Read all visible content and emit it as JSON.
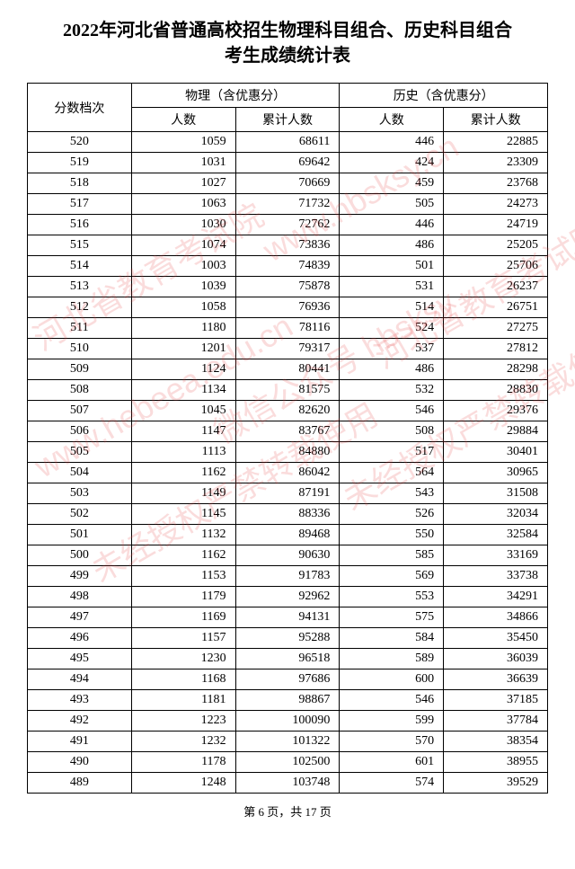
{
  "title_line1": "2022年河北省普通高校招生物理科目组合、历史科目组合",
  "title_line2": "考生成绩统计表",
  "headers": {
    "score": "分数档次",
    "physics": "物理（含优惠分）",
    "history": "历史（含优惠分）",
    "count": "人数",
    "cumulative": "累计人数"
  },
  "footer": "第 6 页，共 17 页",
  "watermarks": {
    "w1": "河北省教育考试院",
    "w2": "www.hebeea.edu.cn",
    "w3": "www.hbsksy.cn",
    "w4": "微信公众号 hbsksy",
    "w5": "未经授权严禁转载使用"
  },
  "table": {
    "columns": [
      "分数档次",
      "人数",
      "累计人数",
      "人数",
      "累计人数"
    ],
    "rows": [
      [
        520,
        1059,
        68611,
        446,
        22885
      ],
      [
        519,
        1031,
        69642,
        424,
        23309
      ],
      [
        518,
        1027,
        70669,
        459,
        23768
      ],
      [
        517,
        1063,
        71732,
        505,
        24273
      ],
      [
        516,
        1030,
        72762,
        446,
        24719
      ],
      [
        515,
        1074,
        73836,
        486,
        25205
      ],
      [
        514,
        1003,
        74839,
        501,
        25706
      ],
      [
        513,
        1039,
        75878,
        531,
        26237
      ],
      [
        512,
        1058,
        76936,
        514,
        26751
      ],
      [
        511,
        1180,
        78116,
        524,
        27275
      ],
      [
        510,
        1201,
        79317,
        537,
        27812
      ],
      [
        509,
        1124,
        80441,
        486,
        28298
      ],
      [
        508,
        1134,
        81575,
        532,
        28830
      ],
      [
        507,
        1045,
        82620,
        546,
        29376
      ],
      [
        506,
        1147,
        83767,
        508,
        29884
      ],
      [
        505,
        1113,
        84880,
        517,
        30401
      ],
      [
        504,
        1162,
        86042,
        564,
        30965
      ],
      [
        503,
        1149,
        87191,
        543,
        31508
      ],
      [
        502,
        1145,
        88336,
        526,
        32034
      ],
      [
        501,
        1132,
        89468,
        550,
        32584
      ],
      [
        500,
        1162,
        90630,
        585,
        33169
      ],
      [
        499,
        1153,
        91783,
        569,
        33738
      ],
      [
        498,
        1179,
        92962,
        553,
        34291
      ],
      [
        497,
        1169,
        94131,
        575,
        34866
      ],
      [
        496,
        1157,
        95288,
        584,
        35450
      ],
      [
        495,
        1230,
        96518,
        589,
        36039
      ],
      [
        494,
        1168,
        97686,
        600,
        36639
      ],
      [
        493,
        1181,
        98867,
        546,
        37185
      ],
      [
        492,
        1223,
        100090,
        599,
        37784
      ],
      [
        491,
        1232,
        101322,
        570,
        38354
      ],
      [
        490,
        1178,
        102500,
        601,
        38955
      ],
      [
        489,
        1248,
        103748,
        574,
        39529
      ]
    ]
  }
}
